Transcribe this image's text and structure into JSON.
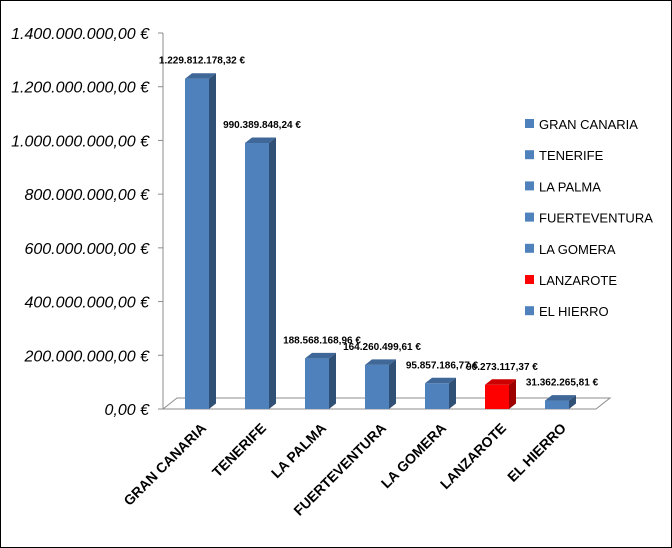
{
  "chart_data": {
    "type": "bar",
    "title": "",
    "xlabel": "",
    "ylabel": "",
    "ylim": [
      0,
      1400000000
    ],
    "y_ticks": [
      "0,00 €",
      "200.000.000,00 €",
      "400.000.000,00 €",
      "600.000.000,00 €",
      "800.000.000,00 €",
      "1.000.000.000,00 €",
      "1.200.000.000,00 €",
      "1.400.000.000,00 €"
    ],
    "categories": [
      "GRAN CANARIA",
      "TENERIFE",
      "LA PALMA",
      "FUERTEVENTURA",
      "LA GOMERA",
      "LANZAROTE",
      "EL HIERRO"
    ],
    "values": [
      1229812178.32,
      990389848.24,
      188568168.96,
      164260499.61,
      95857186.77,
      90273117.37,
      31362265.81
    ],
    "value_labels": [
      "1.229.812.178,32 €",
      "990.389.848,24 €",
      "188.568.168,96 €",
      "164.260.499,61 €",
      "95.857.186,77 €",
      "90.273.117,37 €",
      "31.362.265,81 €"
    ],
    "colors": [
      "#4f81bd",
      "#4f81bd",
      "#4f81bd",
      "#4f81bd",
      "#4f81bd",
      "#ff0000",
      "#4f81bd"
    ],
    "legend": {
      "position": "right",
      "entries": [
        "GRAN CANARIA",
        "TENERIFE",
        "LA PALMA",
        "FUERTEVENTURA",
        "LA GOMERA",
        "LANZAROTE",
        "EL HIERRO"
      ]
    },
    "grid": false,
    "style": "3d-column"
  }
}
